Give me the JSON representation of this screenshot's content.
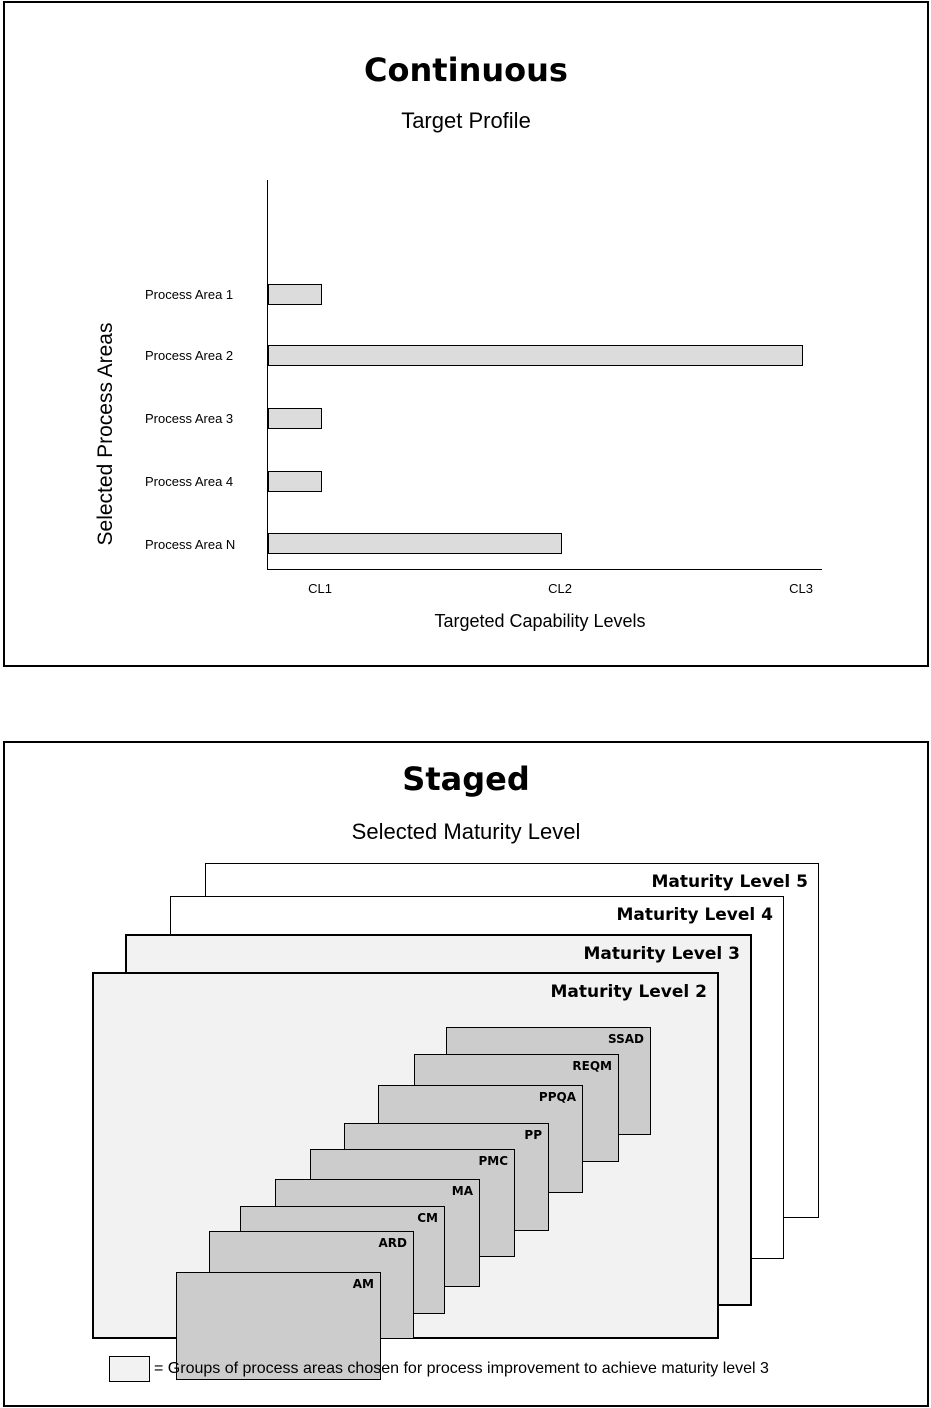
{
  "continuous": {
    "title": "Continuous",
    "subtitle": "Target Profile"
  },
  "chart_data": {
    "type": "bar",
    "orientation": "horizontal",
    "categories": [
      "Process Area 1",
      "Process Area 2",
      "Process Area 3",
      "Process Area 4",
      "Process Area N"
    ],
    "values": [
      1,
      3,
      1,
      1,
      2
    ],
    "x_ticks": [
      "CL1",
      "CL2",
      "CL3"
    ],
    "xlabel": "Targeted Capability  Levels",
    "ylabel": "Selected Process Areas",
    "bar_color": "#dcdcdc"
  },
  "staged": {
    "title": "Staged",
    "subtitle": "Selected Maturity Level",
    "maturity_levels": [
      "Maturity Level 5",
      "Maturity Level 4",
      "Maturity Level 3",
      "Maturity Level 2"
    ],
    "process_areas": [
      "SSAD",
      "REQM",
      "PPQA",
      "PP",
      "PMC",
      "MA",
      "CM",
      "ARD",
      "AM"
    ],
    "legend_text": "= Groups of process areas chosen for process improvement to achieve maturity level 3",
    "legend_color": "#f2f2f2",
    "process_area_color": "#cccccc"
  }
}
